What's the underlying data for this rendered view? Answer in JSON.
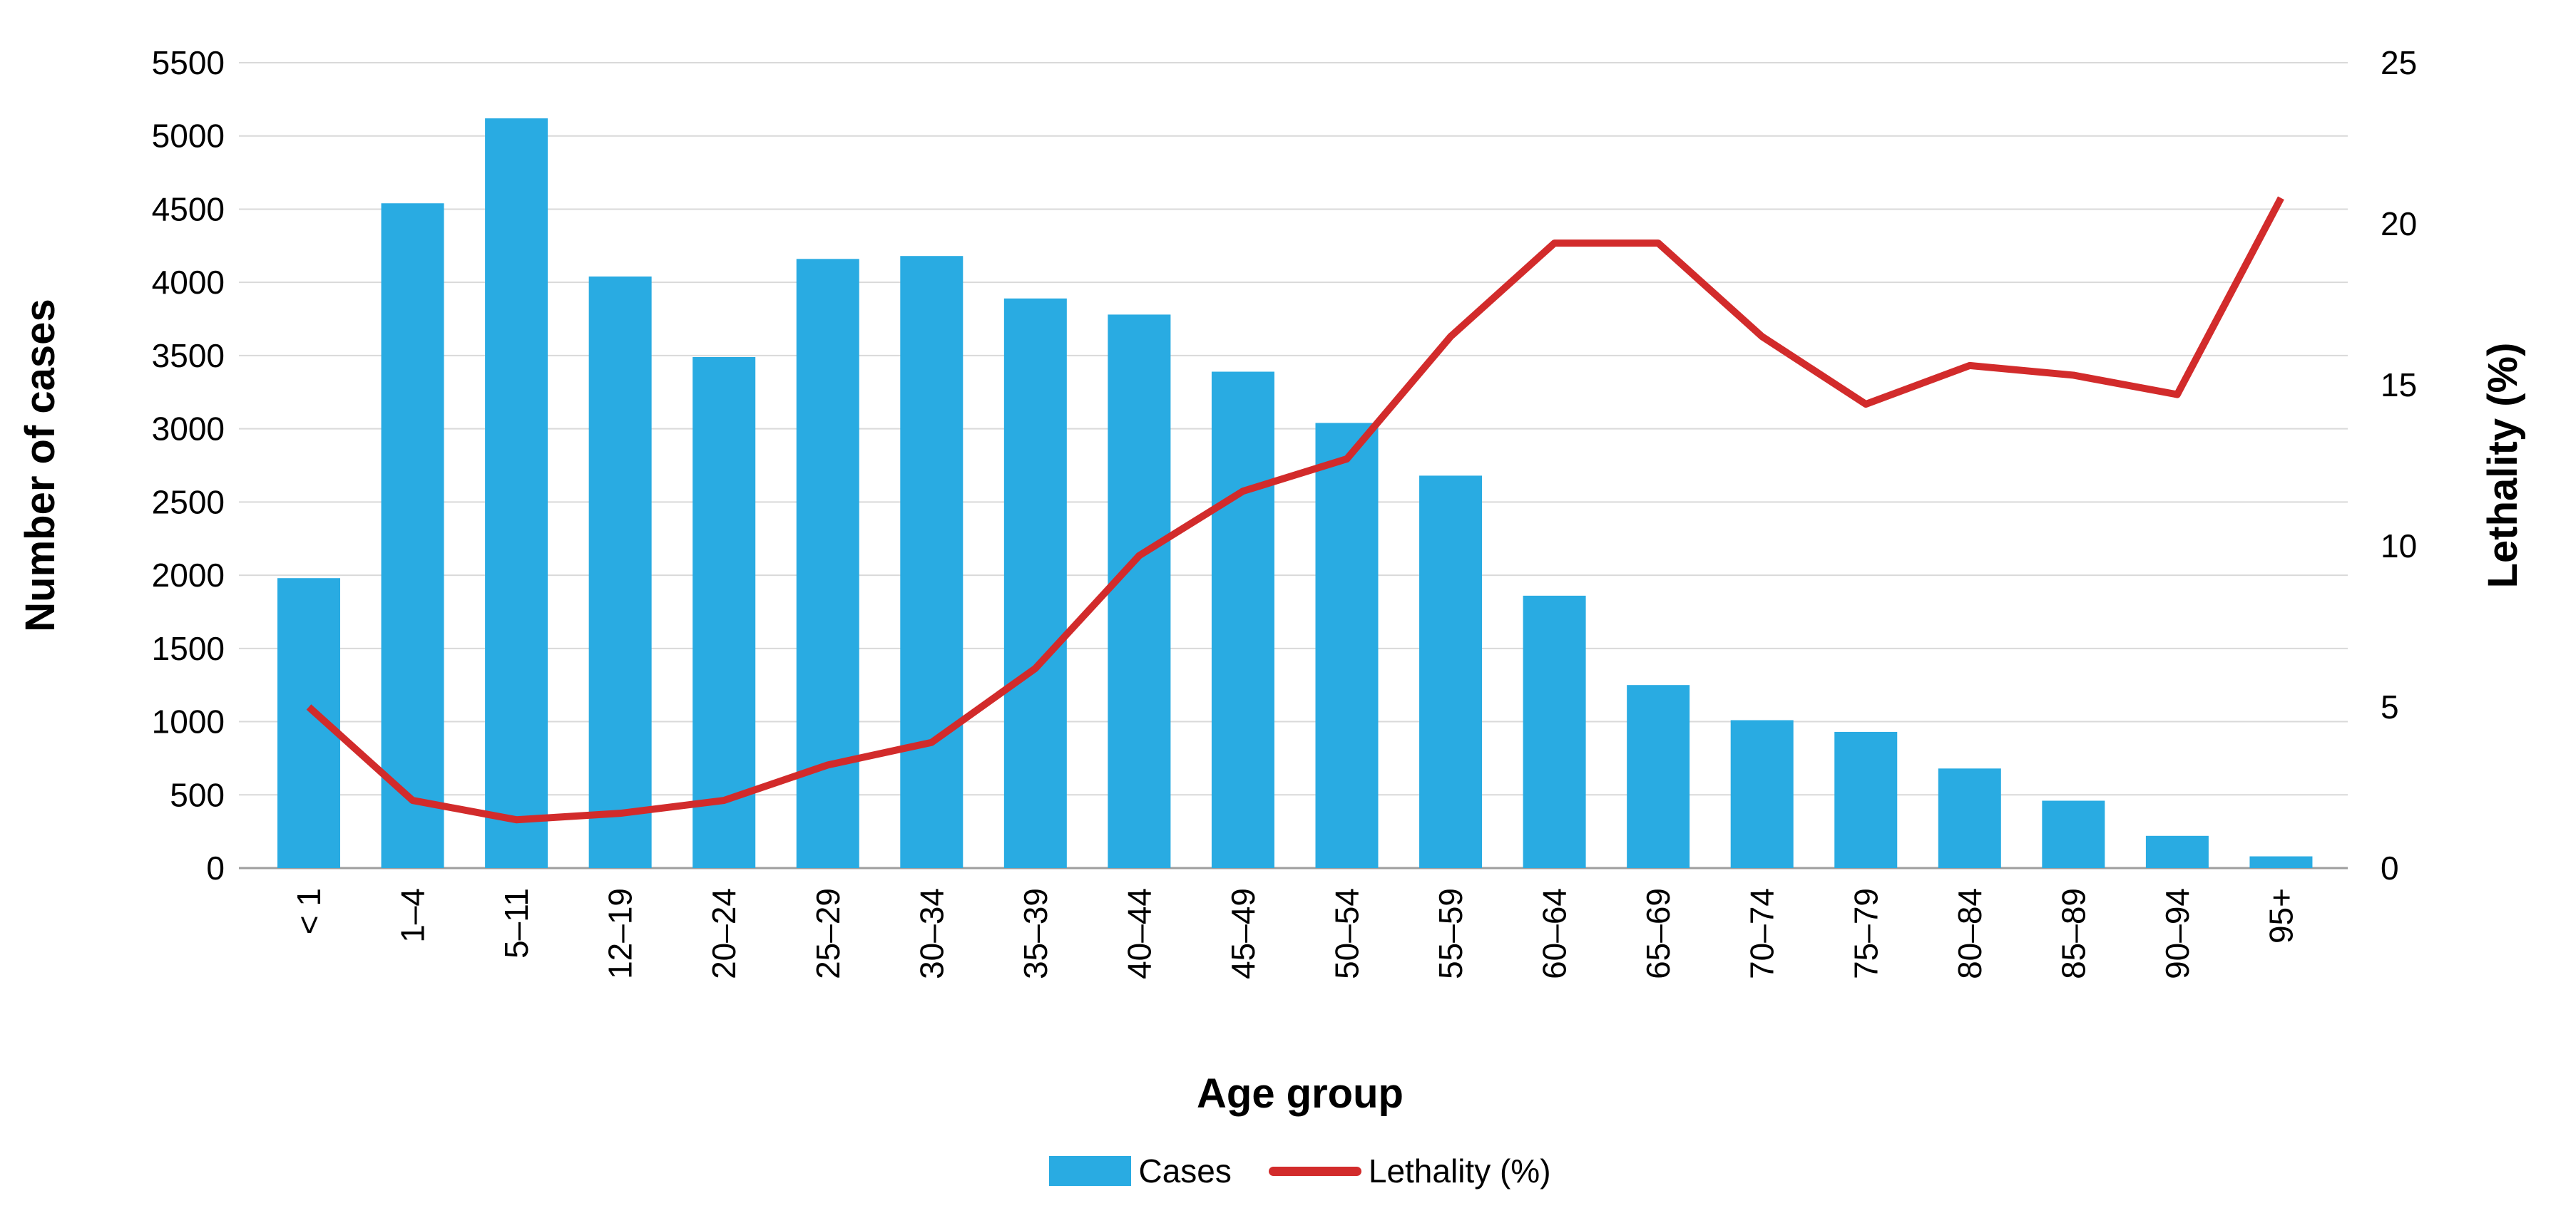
{
  "chart_data": {
    "type": "bar",
    "subtype": "bar+line combo, dual y-axes",
    "title": "",
    "categories": [
      "< 1",
      "1–4",
      "5–11",
      "12–19",
      "20–24",
      "25–29",
      "30–34",
      "35–39",
      "40–44",
      "45–49",
      "50–54",
      "55–59",
      "60–64",
      "65–69",
      "70–74",
      "75–79",
      "80–84",
      "85–89",
      "90–94",
      "95+"
    ],
    "series": [
      {
        "name": "Cases",
        "type": "bar",
        "yaxis": "left",
        "color": "#29ABE2",
        "values": [
          1980,
          4540,
          5120,
          4040,
          3490,
          4160,
          4180,
          3890,
          3780,
          3390,
          3040,
          2680,
          1860,
          1250,
          1010,
          930,
          680,
          460,
          220,
          80
        ]
      },
      {
        "name": "Lethality (%)",
        "type": "line",
        "yaxis": "right",
        "color": "#D22B2B",
        "values": [
          5.0,
          2.1,
          1.5,
          1.7,
          2.1,
          3.2,
          3.9,
          6.2,
          9.7,
          11.7,
          12.7,
          16.5,
          19.4,
          19.4,
          16.5,
          14.4,
          15.6,
          15.3,
          14.7,
          20.8
        ]
      }
    ],
    "left_axis": {
      "title": "Number of cases",
      "min": 0,
      "max": 5500,
      "step": 500,
      "ticks": [
        "5500",
        "5000",
        "4500",
        "4000",
        "3500",
        "3000",
        "2500",
        "2000",
        "1500",
        "1000",
        "500",
        "0"
      ]
    },
    "right_axis": {
      "title": "Lethality (%)",
      "min": 0,
      "max": 25,
      "step": 5,
      "ticks": [
        "25",
        "20",
        "15",
        "10",
        "5",
        "0"
      ]
    },
    "x_axis": {
      "title": "Age group"
    },
    "legend": {
      "position": "bottom",
      "entries": [
        {
          "label": "Cases",
          "swatch": "bar",
          "color": "#29ABE2"
        },
        {
          "label": "Lethality (%)",
          "swatch": "line",
          "color": "#D22B2B"
        }
      ]
    },
    "grid": {
      "horizontal": true,
      "vertical": false,
      "color": "#D9D9D9",
      "axis_line_color": "#9E9E9E"
    },
    "background": "#FFFFFF"
  }
}
